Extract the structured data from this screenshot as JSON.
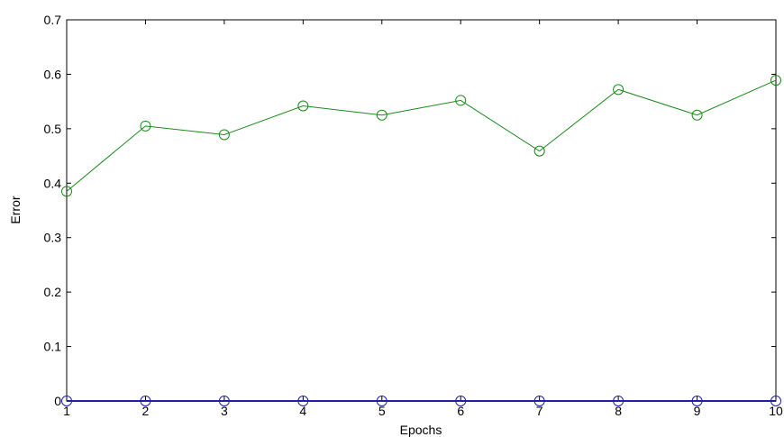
{
  "chart_data": {
    "type": "line",
    "xlabel": "Epochs",
    "ylabel": "Error",
    "xlim": [
      1,
      10
    ],
    "ylim": [
      0,
      0.7
    ],
    "x_ticks": [
      1,
      2,
      3,
      4,
      5,
      6,
      7,
      8,
      9,
      10
    ],
    "y_ticks": [
      0,
      0.1,
      0.2,
      0.3,
      0.4,
      0.5,
      0.6,
      0.7
    ],
    "y_tick_labels": [
      "0",
      "0.1",
      "0.2",
      "0.3",
      "0.4",
      "0.5",
      "0.6",
      "0.7"
    ],
    "grid": false,
    "x": [
      1,
      2,
      3,
      4,
      5,
      6,
      7,
      8,
      9,
      10
    ],
    "series": [
      {
        "color": "#1a8a1a",
        "marker": "circle",
        "values": [
          0.385,
          0.505,
          0.489,
          0.542,
          0.525,
          0.552,
          0.459,
          0.572,
          0.525,
          0.589
        ]
      },
      {
        "color": "#1f1fa8",
        "marker": "circle",
        "values": [
          0,
          0,
          0,
          0,
          0,
          0,
          0,
          0,
          0,
          0
        ]
      }
    ]
  }
}
